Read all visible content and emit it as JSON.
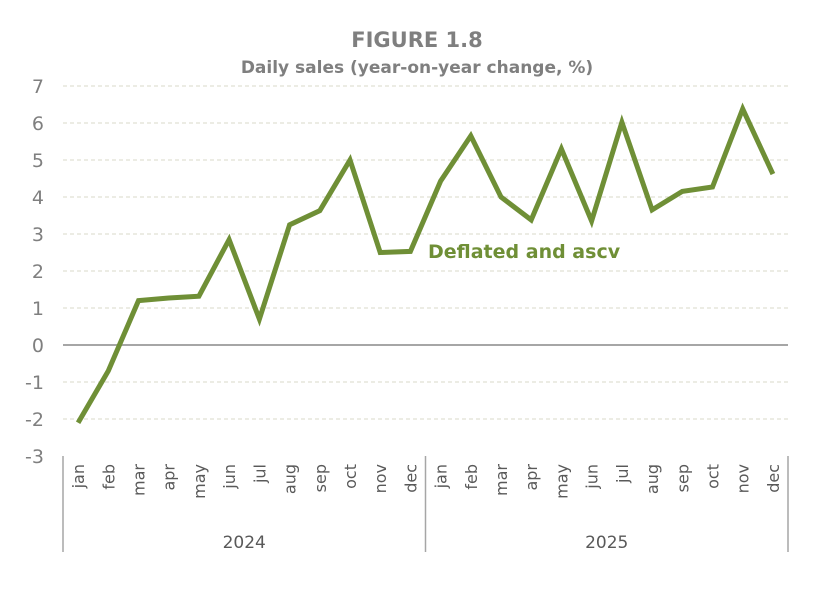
{
  "chart_data": {
    "type": "line",
    "title": "FIGURE 1.8",
    "subtitle": "Daily sales (year-on-year change, %)",
    "xlabel": "",
    "ylabel": "",
    "ylim": [
      -3,
      7
    ],
    "yticks": [
      7,
      6,
      5,
      4,
      3,
      2,
      1,
      0,
      -1,
      -2,
      -3
    ],
    "grid": true,
    "categories": [
      "jan",
      "feb",
      "mar",
      "apr",
      "may",
      "jun",
      "jul",
      "aug",
      "sep",
      "oct",
      "nov",
      "dec",
      "jan",
      "feb",
      "mar",
      "apr",
      "may",
      "jun",
      "jul",
      "aug",
      "sep",
      "oct",
      "nov",
      "dec"
    ],
    "groups": [
      {
        "label": "2024",
        "count": 12
      },
      {
        "label": "2025",
        "count": 12
      }
    ],
    "series": [
      {
        "name": "Deflated and ascv",
        "color": "#6f8f36",
        "values": [
          -2.1,
          -0.7,
          1.2,
          1.27,
          1.32,
          2.85,
          0.7,
          3.25,
          3.63,
          5.0,
          2.5,
          2.53,
          4.43,
          5.65,
          4.0,
          3.38,
          5.3,
          3.35,
          6.02,
          3.65,
          4.15,
          4.27,
          6.38,
          4.62
        ]
      }
    ]
  }
}
